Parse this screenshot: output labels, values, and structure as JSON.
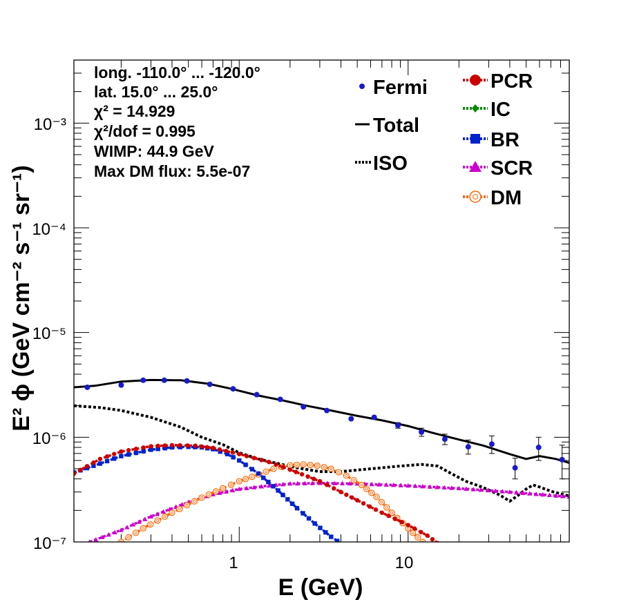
{
  "chart_data": {
    "type": "line",
    "title": "",
    "xlabel": "E (GeV)",
    "ylabel": "E² ϕ (GeV cm⁻² s⁻¹ sr⁻¹)",
    "xscale": "log",
    "yscale": "log",
    "xlim": [
      0.105,
      90
    ],
    "ylim": [
      1e-07,
      0.004
    ],
    "x_ticks": [
      "1",
      "10"
    ],
    "y_ticks": [
      "10⁻⁷",
      "10⁻⁶",
      "10⁻⁵",
      "10⁻⁴",
      "10⁻³"
    ],
    "annotations": [
      "long. -110.0° ... -120.0°",
      "lat. 15.0° ... 25.0°",
      "χ² = 14.929",
      "χ²/dof = 0.995",
      "WIMP: 44.9 GeV",
      "Max DM flux: 5.5e-07"
    ],
    "legend_placement": "top-right",
    "legend": [
      "Fermi",
      "Total",
      "ISO",
      "PCR",
      "IC",
      "BR",
      "SCR",
      "DM"
    ],
    "fermi": {
      "name": "Fermi",
      "color": "#1a1acc",
      "x": [
        0.126,
        0.2,
        0.27,
        0.36,
        0.49,
        0.67,
        0.92,
        1.27,
        1.75,
        2.4,
        3.3,
        4.6,
        6.3,
        8.7,
        12.0,
        16.5,
        22.7,
        31.3,
        43.0,
        59.3,
        81.6
      ],
      "y": [
        3e-06,
        3.15e-06,
        3.5e-06,
        3.5e-06,
        3.45e-06,
        3.2e-06,
        2.9e-06,
        2.55e-06,
        2.3e-06,
        1.95e-06,
        1.8e-06,
        1.5e-06,
        1.55e-06,
        1.3e-06,
        1.12e-06,
        9.6e-07,
        8.1e-07,
        8.6e-07,
        5.1e-07,
        8e-07,
        6.1e-07
      ],
      "yerr_low": [
        1e-08,
        1e-08,
        1e-08,
        1e-08,
        1e-08,
        1e-08,
        1e-08,
        2e-08,
        3e-08,
        4e-08,
        5e-08,
        5e-08,
        6e-08,
        8e-08,
        1e-07,
        1.1e-07,
        1.2e-07,
        1.6e-07,
        1.1e-07,
        2e-07,
        2.1e-07
      ],
      "yerr_high": [
        1e-08,
        1e-08,
        1e-08,
        1e-08,
        1e-08,
        1e-08,
        1e-08,
        2e-08,
        3e-08,
        4e-08,
        5e-08,
        5e-08,
        6e-08,
        8e-08,
        1e-07,
        1.1e-07,
        1.3e-07,
        1.7e-07,
        1.2e-07,
        2e-07,
        2.3e-07
      ]
    },
    "series": [
      {
        "name": "Total",
        "color": "#000000",
        "style": "solid",
        "x": [
          0.105,
          0.14,
          0.2,
          0.3,
          0.45,
          0.65,
          0.9,
          1.3,
          1.8,
          2.5,
          3.5,
          5,
          7,
          10,
          14,
          20,
          28,
          40,
          50,
          60,
          75,
          90
        ],
        "y": [
          3e-06,
          3.1e-06,
          3.4e-06,
          3.52e-06,
          3.5e-06,
          3.25e-06,
          2.9e-06,
          2.5e-06,
          2.25e-06,
          2e-06,
          1.8e-06,
          1.6e-06,
          1.45e-06,
          1.28e-06,
          1.1e-06,
          9.5e-07,
          8.3e-07,
          6.9e-07,
          6.2e-07,
          6.6e-07,
          6.2e-07,
          5.7e-07
        ]
      },
      {
        "name": "ISO",
        "color": "#000000",
        "style": "dotted",
        "x": [
          0.105,
          0.15,
          0.2,
          0.3,
          0.45,
          0.6,
          0.8,
          1.0,
          1.3,
          1.7,
          2.2,
          3.0,
          4.0,
          6.0,
          9.0,
          12.0,
          15.0,
          18.0,
          22.0,
          28.0,
          35.0,
          40.0,
          45.0,
          50.0,
          55.0,
          60.0,
          70.0,
          90.0
        ],
        "y": [
          2e-06,
          1.92e-06,
          1.8e-06,
          1.55e-06,
          1.25e-06,
          1e-06,
          8.5e-07,
          7.1e-07,
          6.2e-07,
          5.6e-07,
          5.1e-07,
          4.7e-07,
          4.7e-07,
          5e-07,
          5.3e-07,
          5.5e-07,
          5.3e-07,
          4.5e-07,
          3.8e-07,
          3.3e-07,
          2.8e-07,
          2.45e-07,
          2.8e-07,
          3.2e-07,
          3.5e-07,
          3.35e-07,
          3.05e-07,
          2.75e-07
        ]
      },
      {
        "name": "PCR",
        "color": "#cc0000",
        "marker": "circle",
        "x": [
          0.105,
          0.15,
          0.2,
          0.3,
          0.4,
          0.55,
          0.7,
          1.0,
          1.5,
          2.0,
          3.0,
          4.0,
          5.0,
          7.0,
          10.0,
          13.0,
          16.0
        ],
        "y": [
          4.5e-07,
          6.2e-07,
          7.3e-07,
          8.2e-07,
          8.4e-07,
          8.3e-07,
          7.9e-07,
          6.9e-07,
          5.8e-07,
          4.9e-07,
          3.8e-07,
          3e-07,
          2.5e-07,
          1.9e-07,
          1.45e-07,
          1.15e-07,
          9e-08
        ]
      },
      {
        "name": "IC",
        "color": "#008800",
        "marker": "diamond",
        "x": [],
        "y": []
      },
      {
        "name": "BR",
        "color": "#0022cc",
        "marker": "square",
        "x": [
          0.105,
          0.15,
          0.2,
          0.3,
          0.4,
          0.5,
          0.6,
          0.7,
          0.85,
          1.0,
          1.3,
          1.7,
          2.2,
          2.8,
          3.5,
          4.5
        ],
        "y": [
          4.6e-07,
          5.6e-07,
          6.6e-07,
          7.6e-07,
          8e-07,
          8.1e-07,
          8e-07,
          7.7e-07,
          6.9e-07,
          6e-07,
          4.5e-07,
          3.1e-07,
          2.1e-07,
          1.5e-07,
          1.12e-07,
          8.5e-08
        ]
      },
      {
        "name": "SCR",
        "color": "#cc00cc",
        "marker": "triangle",
        "x": [
          0.13,
          0.2,
          0.3,
          0.5,
          0.7,
          1.0,
          1.5,
          2.0,
          3.0,
          5.0,
          10.0,
          20.0,
          40.0,
          90.0
        ],
        "y": [
          1e-07,
          1.3e-07,
          1.75e-07,
          2.4e-07,
          2.85e-07,
          3.2e-07,
          3.45e-07,
          3.6e-07,
          3.65e-07,
          3.6e-07,
          3.45e-07,
          3.25e-07,
          3e-07,
          2.7e-07
        ]
      },
      {
        "name": "DM",
        "color": "#ff6600",
        "marker": "open-circle",
        "x": [
          0.2,
          0.27,
          0.4,
          0.6,
          0.8,
          1.0,
          1.3,
          1.6,
          2.0,
          2.4,
          2.9,
          3.5,
          4.3,
          5.3,
          6.5,
          8.0,
          10.0,
          12.2
        ],
        "y": [
          1e-07,
          1.35e-07,
          1.9e-07,
          2.65e-07,
          3.25e-07,
          3.8e-07,
          4.4e-07,
          5e-07,
          5.4e-07,
          5.5e-07,
          5.35e-07,
          5e-07,
          4.3e-07,
          3.5e-07,
          2.7e-07,
          1.9e-07,
          1.35e-07,
          1e-07
        ]
      }
    ]
  }
}
